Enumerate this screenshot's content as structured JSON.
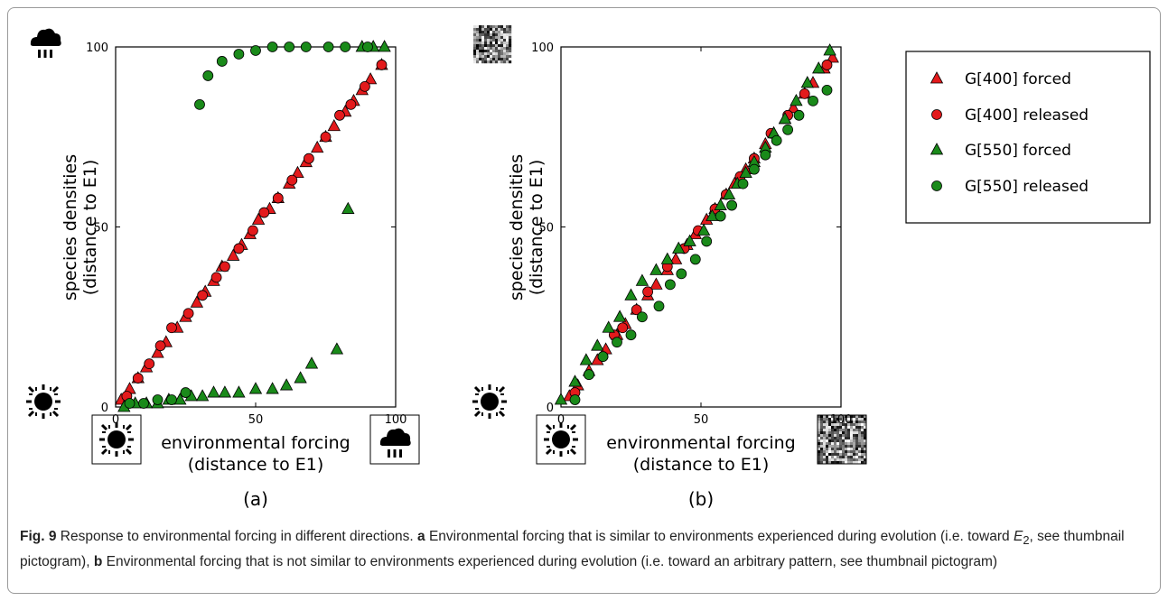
{
  "panels": [
    {
      "id": "a",
      "label": "(a)",
      "bottom_right_icon": "cloud-rain-icon"
    },
    {
      "id": "b",
      "label": "(b)",
      "bottom_right_icon": "random-noise-pattern-icon"
    }
  ],
  "icons": {
    "bottom_left": "sun-icon"
  },
  "caption": {
    "fig_label": "Fig. 9",
    "lead": "Response to environmental forcing in different directions.",
    "a_label": "a",
    "a_text_before": "Environmental forcing that is similar to environments experienced during evolution (i.e. toward",
    "a_sym": "E",
    "a_sub": "2",
    "a_text_after": ", see thumbnail pictogram),",
    "b_label": "b",
    "b_text": "Environmental forcing that is not similar to environments experienced during evolution (i.e. toward an arbitrary pattern, see thumbnail pictogram)"
  },
  "legend": [
    {
      "label": "G[400] forced",
      "marker": "triangle",
      "color": "#e31a1c"
    },
    {
      "label": "G[400] released",
      "marker": "circle",
      "color": "#e31a1c"
    },
    {
      "label": "G[550] forced",
      "marker": "triangle",
      "color": "#1a8a1a"
    },
    {
      "label": "G[550] released",
      "marker": "circle",
      "color": "#1a8a1a"
    }
  ],
  "chart_data": [
    {
      "type": "scatter",
      "panel": "a",
      "xlabel": [
        "environmental forcing",
        "(distance to E1)"
      ],
      "ylabel": [
        "species densities",
        "(distance to E1)"
      ],
      "xlim": [
        0,
        100
      ],
      "ylim": [
        0,
        100
      ],
      "xticks": [
        "0",
        "50",
        "100"
      ],
      "yticks": [
        "0",
        "50",
        "100"
      ],
      "grid": false,
      "series": [
        {
          "name": "G[400] forced",
          "marker": "triangle",
          "color": "#e31a1c",
          "x": [
            2,
            5,
            8,
            11,
            15,
            18,
            22,
            25,
            29,
            32,
            35,
            38,
            42,
            45,
            48,
            51,
            55,
            58,
            62,
            65,
            68,
            72,
            75,
            78,
            82,
            85,
            88,
            91,
            95
          ],
          "y": [
            2,
            5,
            8,
            11,
            15,
            18,
            22,
            25,
            29,
            32,
            35,
            39,
            42,
            45,
            48,
            52,
            55,
            58,
            62,
            65,
            68,
            72,
            75,
            78,
            82,
            85,
            88,
            91,
            95
          ]
        },
        {
          "name": "G[400] released",
          "marker": "circle",
          "color": "#e31a1c",
          "x": [
            4,
            8,
            12,
            16,
            20,
            26,
            31,
            36,
            39,
            44,
            49,
            53,
            58,
            63,
            69,
            75,
            80,
            84,
            89,
            95
          ],
          "y": [
            3,
            8,
            12,
            17,
            22,
            26,
            31,
            36,
            39,
            44,
            49,
            54,
            58,
            63,
            69,
            75,
            81,
            84,
            89,
            95
          ]
        },
        {
          "name": "G[550] forced",
          "marker": "triangle",
          "color": "#1a8a1a",
          "x": [
            3,
            7,
            11,
            15,
            19,
            23,
            27,
            31,
            35,
            39,
            44,
            50,
            56,
            61,
            66,
            70,
            79,
            83,
            88,
            92,
            96
          ],
          "y": [
            0,
            1,
            1,
            1,
            2,
            2,
            3,
            3,
            4,
            4,
            4,
            5,
            5,
            6,
            8,
            12,
            16,
            55,
            100,
            100,
            100
          ]
        },
        {
          "name": "G[550] released",
          "marker": "circle",
          "color": "#1a8a1a",
          "x": [
            5,
            10,
            15,
            20,
            25,
            30,
            33,
            38,
            44,
            50,
            56,
            62,
            68,
            76,
            82,
            90
          ],
          "y": [
            1,
            1,
            2,
            2,
            4,
            84,
            92,
            96,
            98,
            99,
            100,
            100,
            100,
            100,
            100,
            100
          ]
        }
      ]
    },
    {
      "type": "scatter",
      "panel": "b",
      "xlabel": [
        "environmental forcing",
        "(distance to E1)"
      ],
      "ylabel": [
        "species densities",
        "(distance to E1)"
      ],
      "xlim": [
        0,
        100
      ],
      "ylim": [
        0,
        100
      ],
      "xticks": [
        "0",
        "50",
        "100"
      ],
      "yticks": [
        "0",
        "50",
        "100"
      ],
      "grid": false,
      "series": [
        {
          "name": "G[400] forced",
          "marker": "triangle",
          "color": "#e31a1c",
          "x": [
            3,
            6,
            10,
            13,
            16,
            20,
            23,
            27,
            31,
            34,
            38,
            41,
            45,
            48,
            52,
            55,
            59,
            62,
            66,
            69,
            73,
            76,
            80,
            83,
            87,
            90,
            94,
            97
          ],
          "y": [
            3,
            6,
            10,
            13,
            16,
            20,
            23,
            27,
            31,
            34,
            38,
            41,
            45,
            48,
            52,
            55,
            59,
            62,
            66,
            69,
            73,
            76,
            80,
            83,
            87,
            90,
            94,
            97
          ]
        },
        {
          "name": "G[400] released",
          "marker": "circle",
          "color": "#e31a1c",
          "x": [
            5,
            10,
            15,
            19,
            22,
            27,
            31,
            38,
            44,
            49,
            55,
            59,
            64,
            69,
            75,
            81,
            87,
            95
          ],
          "y": [
            4,
            9,
            14,
            20,
            22,
            27,
            32,
            39,
            44,
            49,
            55,
            59,
            64,
            69,
            76,
            81,
            87,
            95
          ]
        },
        {
          "name": "G[550] forced",
          "marker": "triangle",
          "color": "#1a8a1a",
          "x": [
            0,
            5,
            9,
            13,
            17,
            21,
            25,
            29,
            34,
            38,
            42,
            46,
            51,
            54,
            57,
            60,
            63,
            66,
            69,
            73,
            76,
            80,
            84,
            88,
            92,
            96
          ],
          "y": [
            2,
            7,
            13,
            17,
            22,
            25,
            31,
            35,
            38,
            41,
            44,
            46,
            49,
            53,
            56,
            59,
            62,
            65,
            68,
            72,
            76,
            80,
            85,
            90,
            94,
            99
          ]
        },
        {
          "name": "G[550] released",
          "marker": "circle",
          "color": "#1a8a1a",
          "x": [
            5,
            10,
            15,
            20,
            25,
            29,
            35,
            39,
            43,
            48,
            52,
            57,
            61,
            65,
            69,
            73,
            77,
            81,
            85,
            90,
            95
          ],
          "y": [
            2,
            9,
            14,
            18,
            20,
            25,
            28,
            34,
            37,
            41,
            46,
            53,
            56,
            62,
            66,
            70,
            74,
            77,
            81,
            85,
            88
          ]
        }
      ]
    }
  ]
}
